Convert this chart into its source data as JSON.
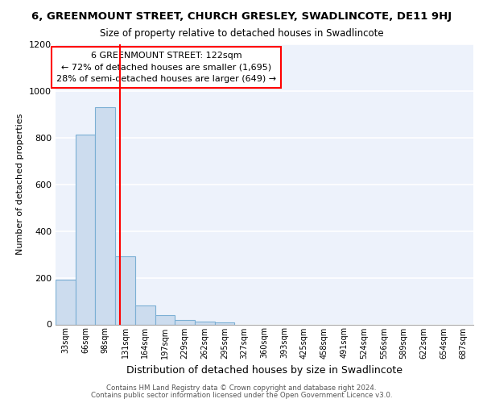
{
  "title_line1": "6, GREENMOUNT STREET, CHURCH GRESLEY, SWADLINCOTE, DE11 9HJ",
  "title_line2": "Size of property relative to detached houses in Swadlincote",
  "xlabel": "Distribution of detached houses by size in Swadlincote",
  "ylabel": "Number of detached properties",
  "footer_line1": "Contains HM Land Registry data © Crown copyright and database right 2024.",
  "footer_line2": "Contains public sector information licensed under the Open Government Licence v3.0.",
  "categories": [
    "33sqm",
    "66sqm",
    "98sqm",
    "131sqm",
    "164sqm",
    "197sqm",
    "229sqm",
    "262sqm",
    "295sqm",
    "327sqm",
    "360sqm",
    "393sqm",
    "425sqm",
    "458sqm",
    "491sqm",
    "524sqm",
    "556sqm",
    "589sqm",
    "622sqm",
    "654sqm",
    "687sqm"
  ],
  "values": [
    193,
    814,
    929,
    291,
    82,
    38,
    19,
    12,
    10,
    0,
    0,
    0,
    0,
    0,
    0,
    0,
    0,
    0,
    0,
    0,
    0
  ],
  "bar_color": "#ccdcee",
  "bar_edge_color": "#7bafd4",
  "ylim": [
    0,
    1200
  ],
  "yticks": [
    0,
    200,
    400,
    600,
    800,
    1000,
    1200
  ],
  "annotation_text_line1": "6 GREENMOUNT STREET: 122sqm",
  "annotation_text_line2": "← 72% of detached houses are smaller (1,695)",
  "annotation_text_line3": "28% of semi-detached houses are larger (649) →",
  "background_color": "#edf2fb",
  "grid_color": "#ffffff",
  "red_line_index": 3.0
}
